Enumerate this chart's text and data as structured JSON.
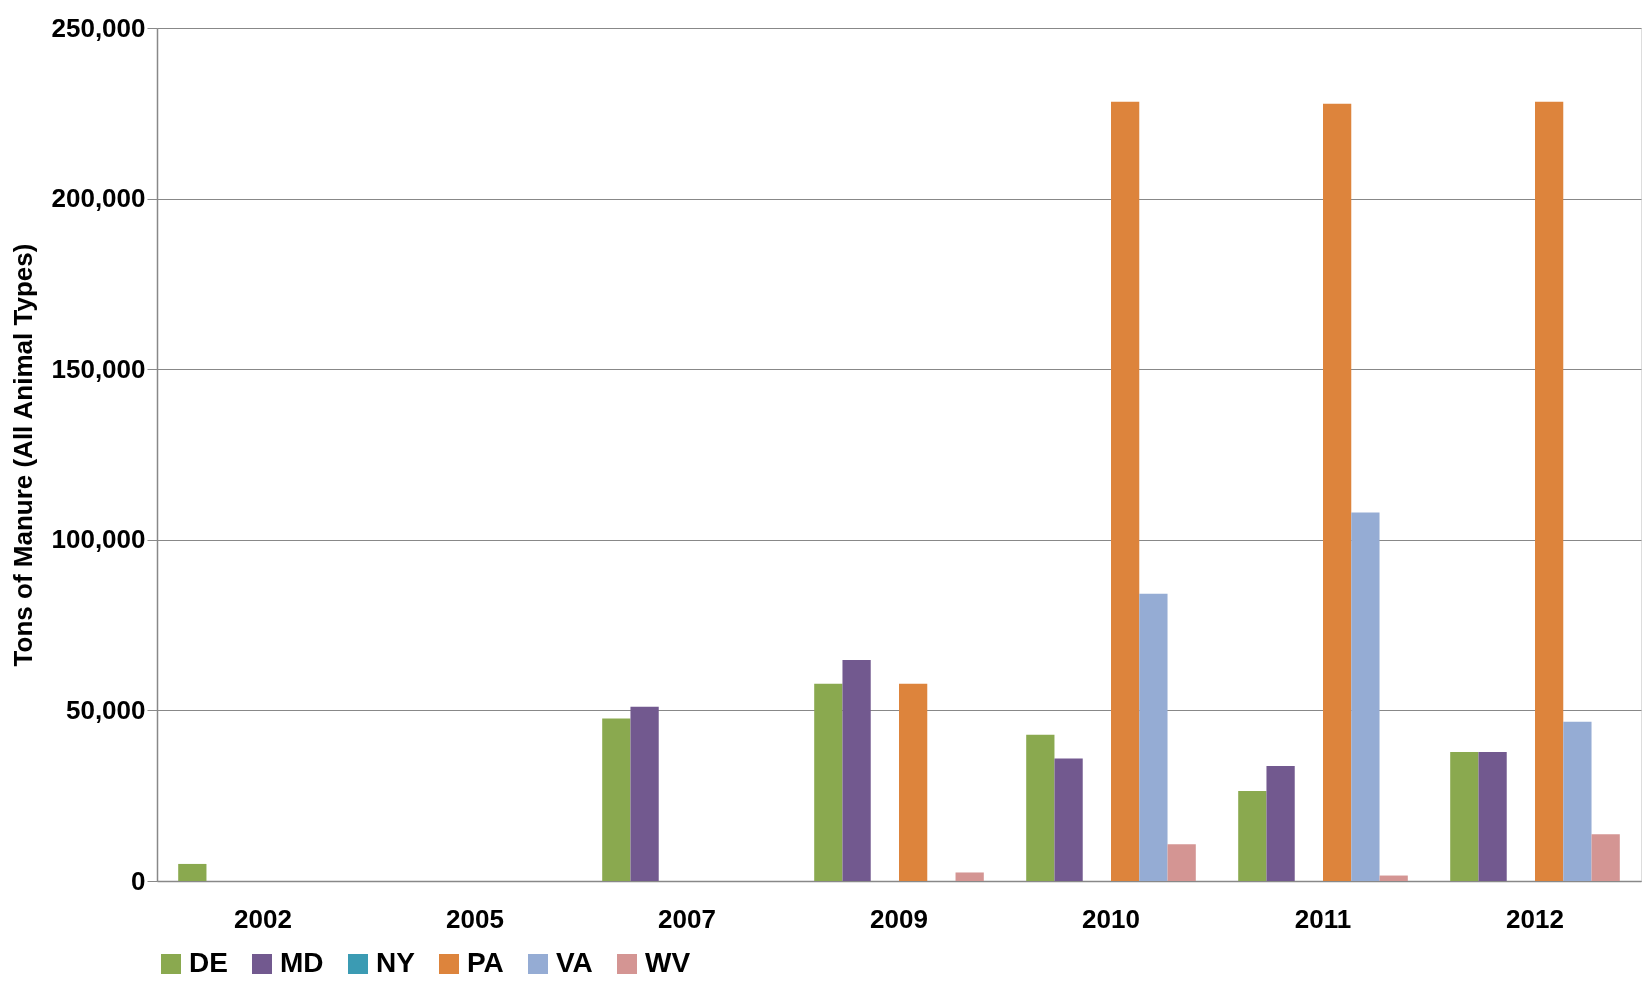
{
  "chart_data": {
    "type": "bar",
    "ylabel": "Tons of Manure (All Animal Types)",
    "categories": [
      "2002",
      "2005",
      "2007",
      "2009",
      "2010",
      "2011",
      "2012"
    ],
    "series": [
      {
        "name": "DE",
        "color": "#8aa94f",
        "values": [
          5000,
          null,
          47600,
          57800,
          42900,
          26400,
          37800
        ]
      },
      {
        "name": "MD",
        "color": "#72598f",
        "values": [
          null,
          null,
          51100,
          64800,
          35900,
          33700,
          37800
        ]
      },
      {
        "name": "NY",
        "color": "#3b9bb3",
        "values": [
          null,
          null,
          null,
          null,
          null,
          null,
          null
        ]
      },
      {
        "name": "PA",
        "color": "#dd843c",
        "values": [
          null,
          null,
          null,
          57800,
          228400,
          227800,
          228400
        ]
      },
      {
        "name": "VA",
        "color": "#95acd4",
        "values": [
          null,
          null,
          null,
          null,
          84200,
          108000,
          46700
        ]
      },
      {
        "name": "WV",
        "color": "#d49593",
        "values": [
          null,
          null,
          null,
          2500,
          10800,
          1600,
          13700
        ]
      }
    ],
    "ylim": [
      0,
      250000
    ],
    "yticks": [
      0,
      {
        "value": 50000,
        "label": "50,000"
      },
      {
        "value": 100000,
        "label": "100,000"
      },
      {
        "value": 150000,
        "label": "150,000"
      },
      {
        "value": 200000,
        "label": "200,000"
      },
      {
        "value": 250000,
        "label": "250,000"
      }
    ],
    "grid": "y",
    "legend": "bottom"
  }
}
